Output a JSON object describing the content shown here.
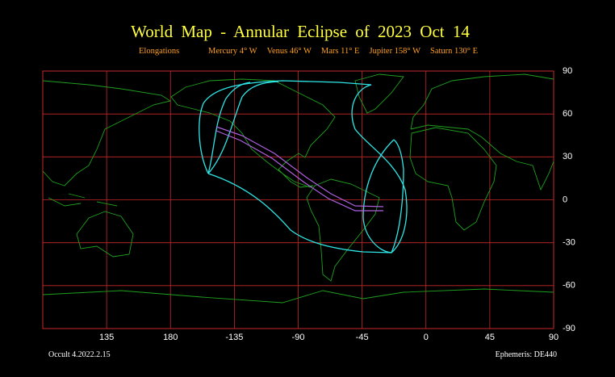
{
  "title": "World Map - Annular Eclipse of 2023 Oct 14",
  "elongations": {
    "label": "Elongations",
    "planets": [
      "Mercury 4° W",
      "Venus 46° W",
      "Mars 11° E",
      "Jupiter 158° W",
      "Saturn 130° E"
    ]
  },
  "map": {
    "xticks": [
      135,
      180,
      -135,
      -90,
      -45,
      0,
      45,
      90
    ],
    "yticks": [
      90,
      60,
      30,
      0,
      -30,
      -60,
      -90
    ]
  },
  "footer": {
    "version": "Occult 4.2022.2.15",
    "ephemeris": "Ephemeris: DE440"
  }
}
